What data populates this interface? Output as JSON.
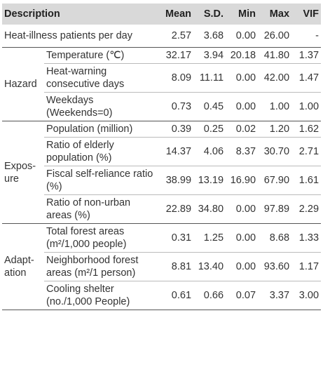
{
  "table": {
    "header": [
      "Description",
      "Mean",
      "S.D.",
      "Min",
      "Max",
      "VIF"
    ],
    "first": {
      "label": "Heat-illness patients per day",
      "values": [
        "2.57",
        "3.68",
        "0.00",
        "26.00",
        "-"
      ]
    },
    "groups": [
      {
        "name": "Hazard",
        "rows": [
          {
            "label": "Temperature (℃)",
            "values": [
              "32.17",
              "3.94",
              "20.18",
              "41.80",
              "1.37"
            ]
          },
          {
            "label": "Heat-warning consecutive days",
            "values": [
              "8.09",
              "11.11",
              "0.00",
              "42.00",
              "1.47"
            ]
          },
          {
            "label": "Weekdays (Weekends=0)",
            "values": [
              "0.73",
              "0.45",
              "0.00",
              "1.00",
              "1.00"
            ]
          }
        ]
      },
      {
        "name": "Expos-\nure",
        "rows": [
          {
            "label": "Population (million)",
            "values": [
              "0.39",
              "0.25",
              "0.02",
              "1.20",
              "1.62"
            ]
          },
          {
            "label": "Ratio of elderly population (%)",
            "values": [
              "14.37",
              "4.06",
              "8.37",
              "30.70",
              "2.71"
            ]
          },
          {
            "label": "Fiscal self-reliance ratio (%)",
            "values": [
              "38.99",
              "13.19",
              "16.90",
              "67.90",
              "1.61"
            ]
          },
          {
            "label": "Ratio of non-urban areas (%)",
            "values": [
              "22.89",
              "34.80",
              "0.00",
              "97.89",
              "2.29"
            ]
          }
        ]
      },
      {
        "name": "Adapt-\nation",
        "rows": [
          {
            "label": "Total forest areas (m²/1,000 people)",
            "values": [
              "0.31",
              "1.25",
              "0.00",
              "8.68",
              "1.33"
            ]
          },
          {
            "label": "Neighborhood forest areas (m²/1 person)",
            "values": [
              "8.81",
              "13.40",
              "0.00",
              "93.60",
              "1.17"
            ]
          },
          {
            "label": "Cooling shelter (no./1,000 People)",
            "values": [
              "0.61",
              "0.66",
              "0.07",
              "3.37",
              "3.00"
            ]
          }
        ]
      }
    ]
  }
}
